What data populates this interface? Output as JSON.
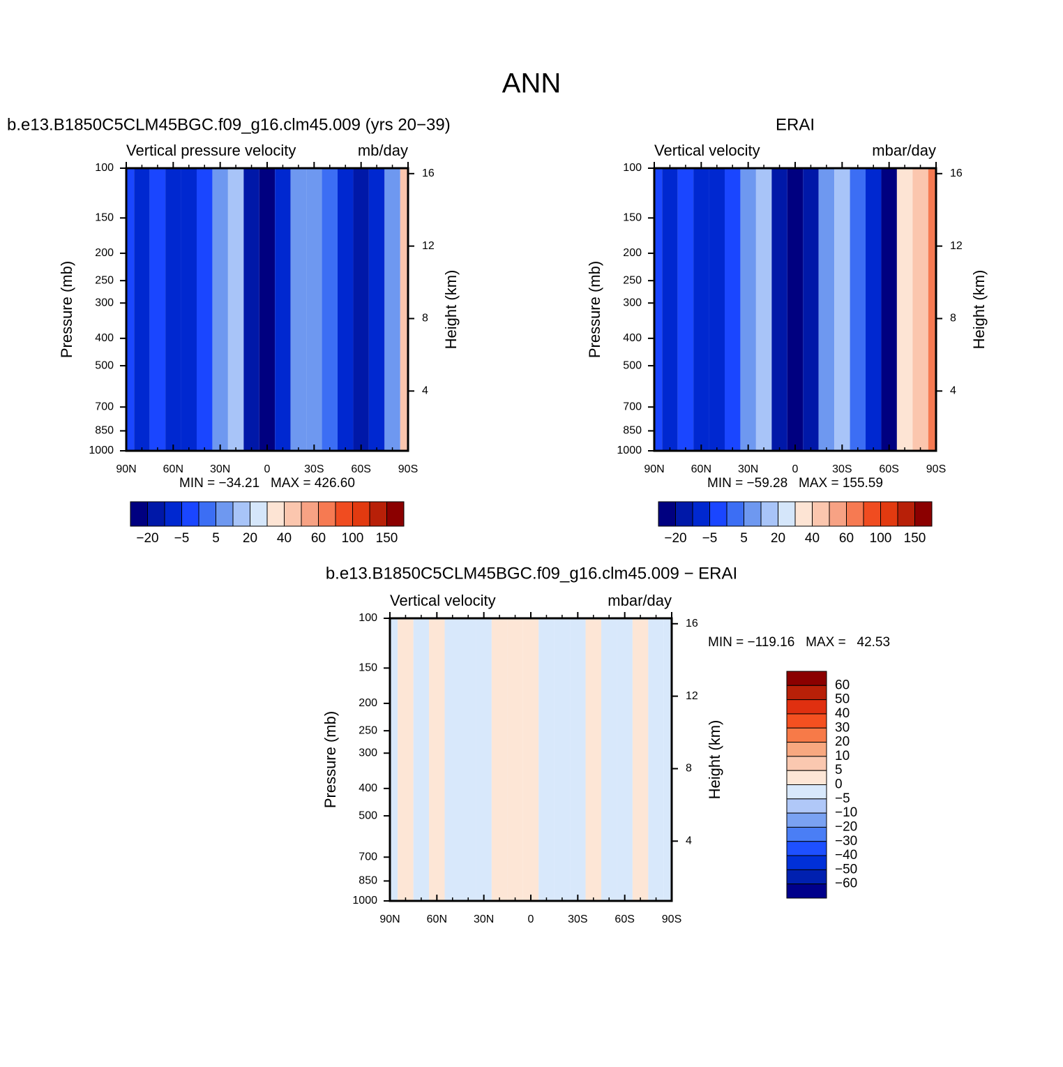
{
  "title": "ANN",
  "chart_data": [
    {
      "type": "contour",
      "title": "b.e13.B1850C5CLM45BGC.f09_g16.clm45.009 (yrs 20−39)",
      "subtitle_left": "Vertical pressure velocity",
      "subtitle_right": "mb/day",
      "ylabel": "Pressure (mb)",
      "y2label": "Height (km)",
      "stats": "MIN = −34.21   MAX = 426.60",
      "x": [
        90,
        80,
        70,
        60,
        50,
        40,
        30,
        20,
        10,
        0,
        -10,
        -20,
        -30,
        -40,
        -50,
        -60,
        -70,
        -80,
        -90
      ],
      "values": [
        -4,
        -6,
        -5,
        -10,
        -6,
        -2,
        8,
        14,
        -15,
        -25,
        -12,
        6,
        12,
        4,
        -6,
        -18,
        -12,
        5,
        40
      ],
      "xlim": [
        90,
        -90
      ],
      "xticks": [
        {
          "value": 90,
          "label": "90N"
        },
        {
          "value": 60,
          "label": "60N"
        },
        {
          "value": 30,
          "label": "30N"
        },
        0,
        {
          "value": -30,
          "label": "30S"
        },
        {
          "value": -60,
          "label": "60S"
        },
        {
          "value": -90,
          "label": "90S"
        }
      ],
      "ylim": [
        1000,
        100
      ],
      "log_y": true,
      "yticks": [
        100,
        150,
        200,
        250,
        300,
        400,
        500,
        700,
        850,
        1000
      ],
      "y2lim": [
        0.7,
        16.3
      ],
      "y2ticks": [
        4,
        8,
        12,
        16
      ],
      "colorbar": {
        "orientation": "horizontal",
        "colors": [
          "#000080",
          "#0018a8",
          "#0028d0",
          "#1a46ff",
          "#3c6ef4",
          "#6e98f0",
          "#a8c4f8",
          "#d5e6fa",
          "#fde4d4",
          "#fbc6ae",
          "#f7a284",
          "#f67a52",
          "#f04c20",
          "#e23a10",
          "#b82008",
          "#8b0000"
        ],
        "labels": [
          {
            "value": -20,
            "label": "−20"
          },
          {
            "value": -5,
            "label": "−5"
          },
          5,
          20,
          40,
          60,
          100,
          150
        ]
      }
    },
    {
      "type": "contour",
      "title": "ERAI",
      "subtitle_left": "Vertical velocity",
      "subtitle_right": "mbar/day",
      "ylabel": "Pressure (mb)",
      "y2label": "Height (km)",
      "stats": "MIN = −59.28   MAX = 155.59",
      "x": [
        90,
        80,
        70,
        60,
        50,
        40,
        30,
        20,
        10,
        0,
        -10,
        -20,
        -30,
        -40,
        -50,
        -60,
        -70,
        -80,
        -90
      ],
      "values": [
        -3,
        -6,
        -4,
        -12,
        -8,
        -3,
        6,
        16,
        -18,
        -30,
        -14,
        5,
        14,
        3,
        -8,
        -22,
        30,
        45,
        60
      ],
      "xlim": [
        90,
        -90
      ],
      "xticks": [
        {
          "value": 90,
          "label": "90N"
        },
        {
          "value": 60,
          "label": "60N"
        },
        {
          "value": 30,
          "label": "30N"
        },
        0,
        {
          "value": -30,
          "label": "30S"
        },
        {
          "value": -60,
          "label": "60S"
        },
        {
          "value": -90,
          "label": "90S"
        }
      ],
      "ylim": [
        1000,
        100
      ],
      "log_y": true,
      "yticks": [
        100,
        150,
        200,
        250,
        300,
        400,
        500,
        700,
        850,
        1000
      ],
      "y2lim": [
        0.7,
        16.3
      ],
      "y2ticks": [
        4,
        8,
        12,
        16
      ],
      "colorbar": {
        "orientation": "horizontal",
        "colors": [
          "#000080",
          "#0018a8",
          "#0028d0",
          "#1a46ff",
          "#3c6ef4",
          "#6e98f0",
          "#a8c4f8",
          "#d5e6fa",
          "#fde4d4",
          "#fbc6ae",
          "#f7a284",
          "#f67a52",
          "#f04c20",
          "#e23a10",
          "#b82008",
          "#8b0000"
        ],
        "labels": [
          {
            "value": -20,
            "label": "−20"
          },
          {
            "value": -5,
            "label": "−5"
          },
          5,
          20,
          40,
          60,
          100,
          150
        ]
      }
    },
    {
      "type": "contour",
      "title": "b.e13.B1850C5CLM45BGC.f09_g16.clm45.009 − ERAI",
      "subtitle_left": "Vertical velocity",
      "subtitle_right": "mbar/day",
      "ylabel": "Pressure (mb)",
      "y2label": "Height (km)",
      "stats": "MIN = −119.16   MAX =   42.53",
      "x": [
        90,
        80,
        70,
        60,
        50,
        40,
        30,
        20,
        10,
        0,
        -10,
        -20,
        -30,
        -40,
        -50,
        -60,
        -70,
        -80,
        -90
      ],
      "values": [
        -2,
        2,
        -1,
        2,
        -1,
        -2,
        -1,
        3,
        2,
        4,
        -2,
        -1,
        -2,
        3,
        -1,
        -2,
        2,
        -3,
        -4
      ],
      "xlim": [
        90,
        -90
      ],
      "xticks": [
        {
          "value": 90,
          "label": "90N"
        },
        {
          "value": 60,
          "label": "60N"
        },
        {
          "value": 30,
          "label": "30N"
        },
        0,
        {
          "value": -30,
          "label": "30S"
        },
        {
          "value": -60,
          "label": "60S"
        },
        {
          "value": -90,
          "label": "90S"
        }
      ],
      "ylim": [
        1000,
        100
      ],
      "log_y": true,
      "yticks": [
        100,
        150,
        200,
        250,
        300,
        400,
        500,
        700,
        850,
        1000
      ],
      "y2lim": [
        0.7,
        16.3
      ],
      "y2ticks": [
        4,
        8,
        12,
        16
      ],
      "colorbar": {
        "orientation": "vertical",
        "colors": [
          "#8b0000",
          "#b82008",
          "#e03010",
          "#f55020",
          "#f77a48",
          "#f8a880",
          "#fac8b0",
          "#fde6d6",
          "#d8e8fb",
          "#b0c8f8",
          "#7aa2f2",
          "#4a7ef5",
          "#1e50ff",
          "#0030d8",
          "#0020b0",
          "#00008b"
        ],
        "labels": [
          60,
          50,
          40,
          30,
          20,
          10,
          5,
          0,
          {
            "value": -5,
            "label": "−5"
          },
          {
            "value": -10,
            "label": "−10"
          },
          {
            "value": -20,
            "label": "−20"
          },
          {
            "value": -30,
            "label": "−30"
          },
          {
            "value": -40,
            "label": "−40"
          },
          {
            "value": -50,
            "label": "−50"
          },
          {
            "value": -60,
            "label": "−60"
          }
        ]
      }
    }
  ]
}
